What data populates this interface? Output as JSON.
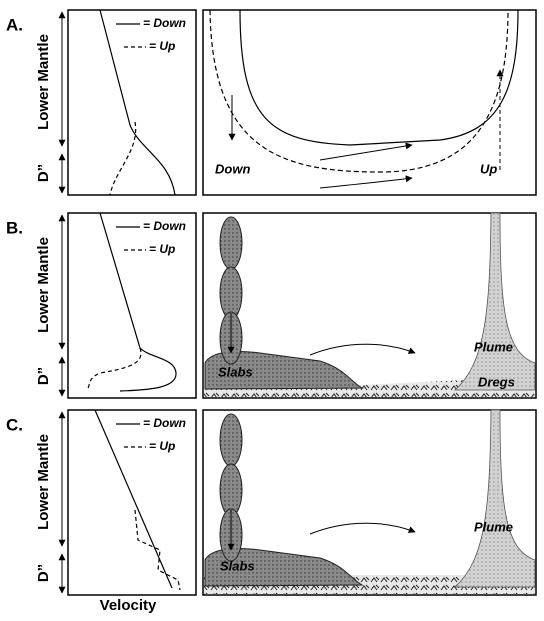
{
  "panels": [
    {
      "label": "A.",
      "lower_mantle": "Lower Mantle",
      "d_double_prime": "D”",
      "legend": {
        "down": "= Down",
        "up": "= Up"
      },
      "annotations": [
        "Down",
        "Up"
      ]
    },
    {
      "label": "B.",
      "lower_mantle": "Lower Mantle",
      "d_double_prime": "D”",
      "legend": {
        "down": "= Down",
        "up": "= Up"
      },
      "annotations": [
        "Slabs",
        "Plume",
        "Dregs"
      ]
    },
    {
      "label": "C.",
      "lower_mantle": "Lower Mantle",
      "d_double_prime": "D”",
      "legend": {
        "down": "= Down",
        "up": "= Up"
      },
      "annotations": [
        "Slabs",
        "Plume"
      ]
    }
  ],
  "x_axis_label": "Velocity"
}
